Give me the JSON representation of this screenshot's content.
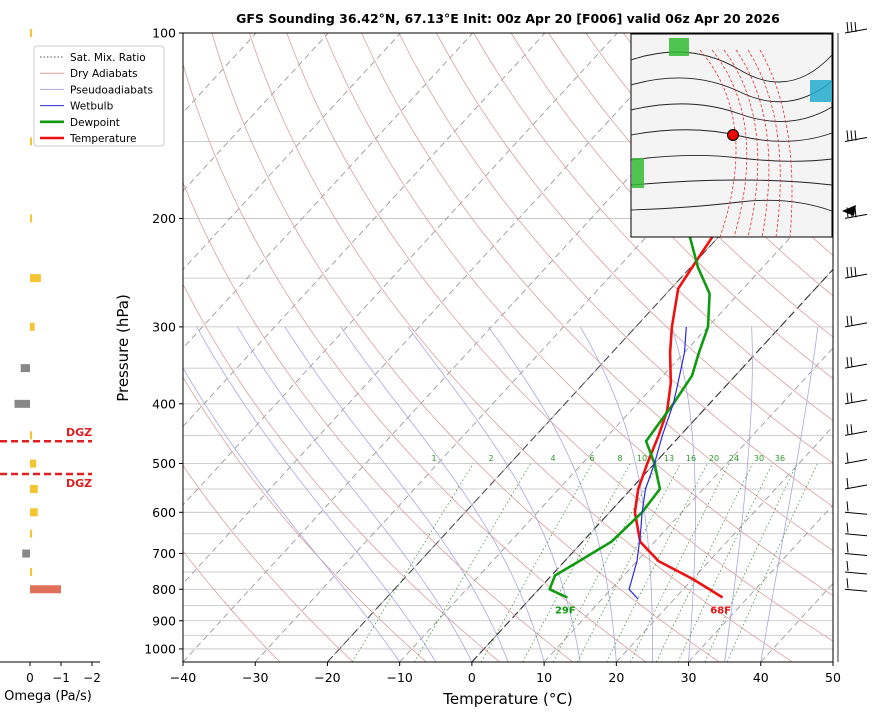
{
  "chart_data": {
    "type": "line",
    "title": "GFS Sounding 36.42°N, 67.13°E Init: 00z Apr 20 [F006] valid 06z Apr 20 2026",
    "xlabel": "Temperature (°C)",
    "ylabel": "Pressure (hPa)",
    "xlim": [
      -40,
      50
    ],
    "ylim": [
      1050,
      100
    ],
    "y_scale": "log",
    "grid": true,
    "legend_placement": "upper-left",
    "x_ticks": [
      "−40",
      "−30",
      "−20",
      "−10",
      "0",
      "10",
      "20",
      "30",
      "40",
      "50"
    ],
    "y_ticks": [
      "100",
      "200",
      "300",
      "400",
      "500",
      "600",
      "700",
      "800",
      "900",
      "1000"
    ],
    "legend": [
      {
        "label": "Sat. Mix. Ratio",
        "color": "#555555",
        "style": "dotted"
      },
      {
        "label": "Dry Adiabats",
        "color": "#d9a0a0",
        "style": "solid"
      },
      {
        "label": "Pseudoadiabats",
        "color": "#a8a8dd",
        "style": "solid"
      },
      {
        "label": "Wetbulb",
        "color": "#2a2ae0",
        "style": "solid"
      },
      {
        "label": "Dewpoint",
        "color": "#109a10",
        "style": "solid"
      },
      {
        "label": "Temperature",
        "color": "#ee1111",
        "style": "solid"
      }
    ],
    "mixing_ratio_labels": [
      "1",
      "2",
      "4",
      "6",
      "8",
      "10",
      "13",
      "16",
      "20",
      "24",
      "30",
      "36"
    ],
    "series": [
      {
        "name": "Temperature",
        "color": "#ee1111",
        "points": [
          [
            26.5,
            825
          ],
          [
            20,
            770
          ],
          [
            13,
            720
          ],
          [
            8,
            670
          ],
          [
            3.5,
            600
          ],
          [
            1,
            550
          ],
          [
            -1,
            500
          ],
          [
            -3,
            450
          ],
          [
            -5,
            410
          ],
          [
            -8,
            370
          ],
          [
            -12,
            330
          ],
          [
            -15,
            300
          ],
          [
            -19,
            260
          ],
          [
            -20,
            235
          ],
          [
            -21.5,
            200
          ],
          [
            -21,
            190
          ],
          [
            -9,
            160
          ],
          [
            -2,
            140
          ],
          [
            -1,
            120
          ],
          [
            0,
            100
          ]
        ]
      },
      {
        "name": "Dewpoint",
        "color": "#109a10",
        "points": [
          [
            5,
            825
          ],
          [
            1.5,
            800
          ],
          [
            0.5,
            760
          ],
          [
            2,
            720
          ],
          [
            4,
            670
          ],
          [
            4.5,
            600
          ],
          [
            4,
            550
          ],
          [
            0,
            500
          ],
          [
            -4,
            460
          ],
          [
            -4.5,
            430
          ],
          [
            -5,
            400
          ],
          [
            -6,
            360
          ],
          [
            -8,
            330
          ],
          [
            -10,
            300
          ],
          [
            -14,
            265
          ],
          [
            -19,
            240
          ],
          [
            -27,
            200
          ],
          [
            -37,
            140
          ],
          [
            -39.5,
            120
          ],
          [
            -42,
            100
          ]
        ]
      },
      {
        "name": "Wetbulb",
        "color": "#2a2ae0",
        "points": [
          [
            15,
            830
          ],
          [
            12.5,
            800
          ],
          [
            10,
            720
          ],
          [
            7,
            650
          ],
          [
            4.5,
            600
          ],
          [
            2,
            550
          ],
          [
            0,
            500
          ],
          [
            -2.5,
            450
          ],
          [
            -5,
            400
          ],
          [
            -7,
            370
          ],
          [
            -10,
            330
          ],
          [
            -13,
            300
          ]
        ]
      }
    ],
    "annotations": {
      "temperature_surface": "68F",
      "dewpoint_surface": "29F",
      "dgz_label": "DGZ",
      "dgz_pressures": [
        460,
        520
      ]
    },
    "omega": {
      "xlabel": "Omega (Pa/s)",
      "x_ticks": [
        "0",
        "−1",
        "−2"
      ],
      "levels": [
        {
          "p": 100,
          "v": -0.05
        },
        {
          "p": 150,
          "v": -0.05
        },
        {
          "p": 200,
          "v": -0.05
        },
        {
          "p": 250,
          "v": -0.35
        },
        {
          "p": 300,
          "v": -0.15
        },
        {
          "p": 350,
          "v": 0.3
        },
        {
          "p": 400,
          "v": 0.5
        },
        {
          "p": 450,
          "v": -0.05
        },
        {
          "p": 500,
          "v": -0.2
        },
        {
          "p": 550,
          "v": -0.25
        },
        {
          "p": 600,
          "v": -0.25
        },
        {
          "p": 650,
          "v": -0.05
        },
        {
          "p": 700,
          "v": 0.25
        },
        {
          "p": 750,
          "v": -0.05
        },
        {
          "p": 800,
          "v": -1.0
        }
      ]
    },
    "inset_map": {
      "description_marker": "location"
    }
  }
}
